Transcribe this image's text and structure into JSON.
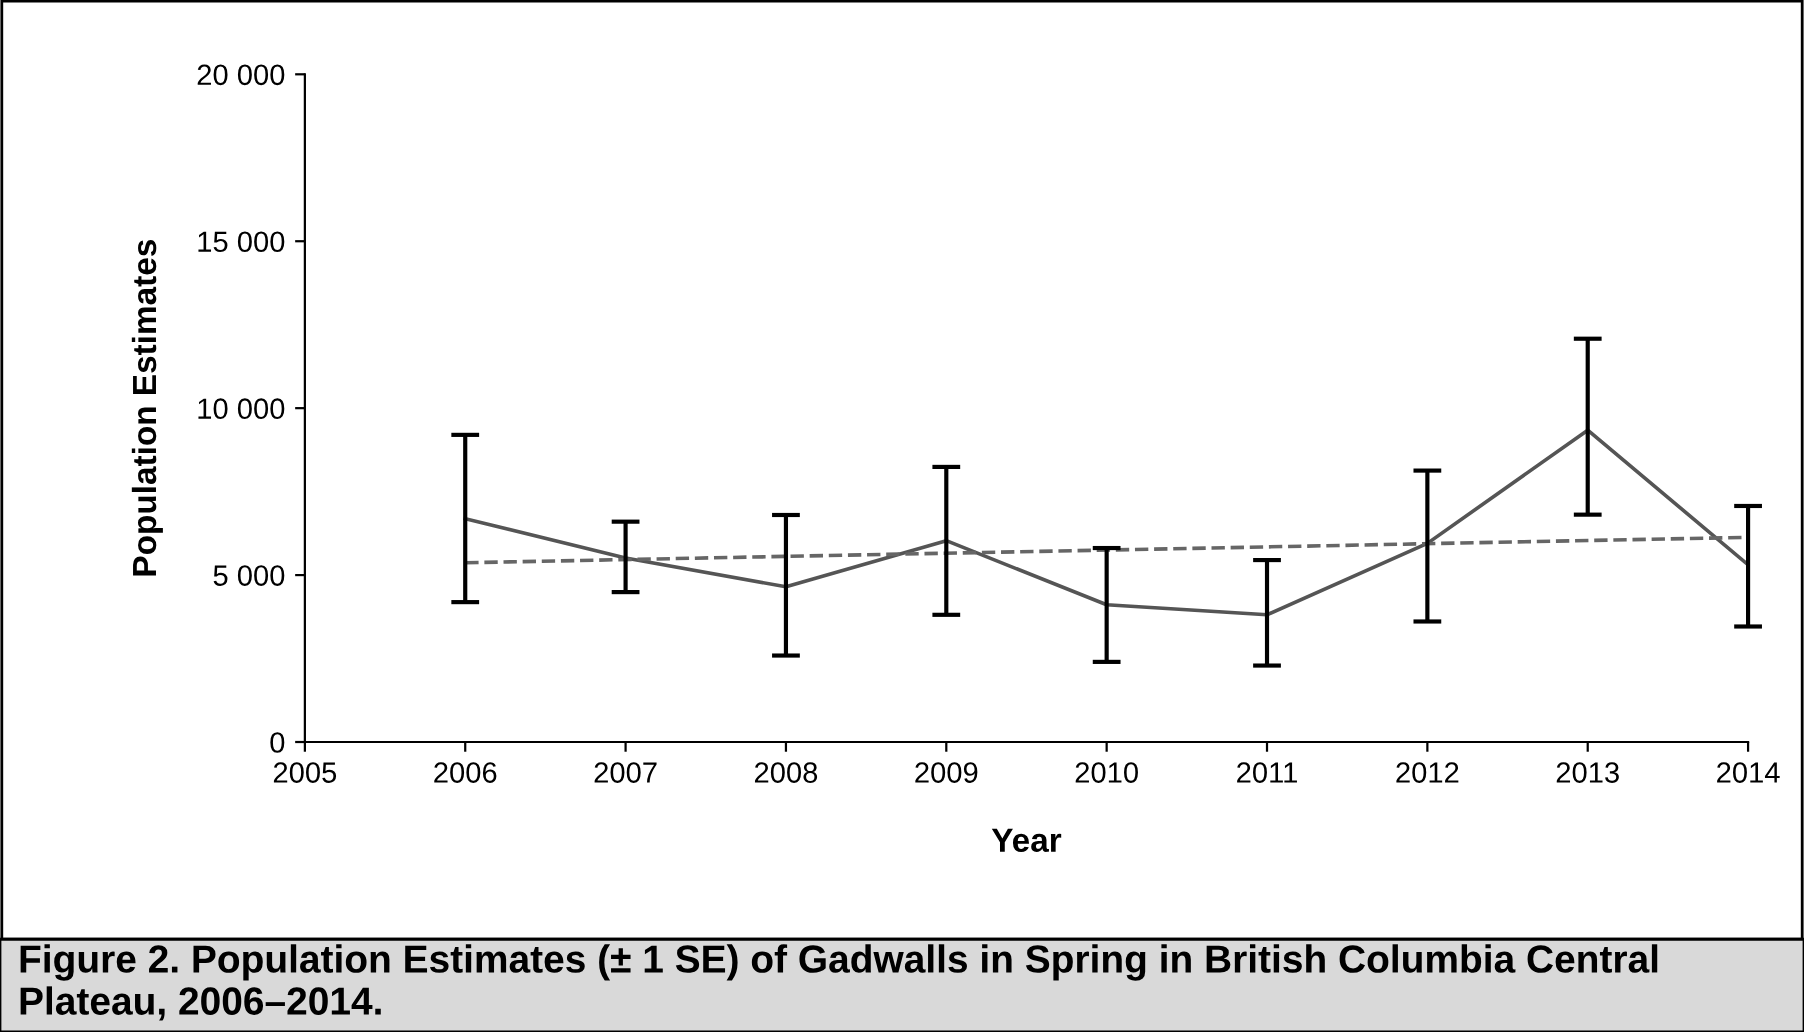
{
  "chart_data": {
    "type": "line",
    "xlabel": "Year",
    "ylabel": "Population Estimates",
    "x": [
      2006,
      2007,
      2008,
      2009,
      2010,
      2011,
      2012,
      2013,
      2014
    ],
    "series": [
      {
        "color": "#555555",
        "line_style": "solid",
        "values": [
          6690,
          5510,
          4650,
          6030,
          4110,
          3810,
          5950,
          9340,
          5310
        ],
        "errors": [
          [
            4190,
            9200
          ],
          [
            4490,
            6600
          ],
          [
            2590,
            6800
          ],
          [
            3810,
            8240
          ],
          [
            2400,
            5810
          ],
          [
            2290,
            5450
          ],
          [
            3610,
            8130
          ],
          [
            6810,
            12080
          ],
          [
            3460,
            7070
          ]
        ]
      },
      {
        "color": "#666666",
        "line_style": "dashed",
        "x": [
          2006,
          2014
        ],
        "values": [
          5370,
          6130
        ]
      }
    ],
    "xlim": [
      2005,
      2014
    ],
    "xticks": [
      2005,
      2006,
      2007,
      2008,
      2009,
      2010,
      2011,
      2012,
      2013,
      2014
    ],
    "ylim": [
      0,
      20000
    ],
    "yticks": [
      {
        "value": 0,
        "label": "0"
      },
      {
        "value": 5000,
        "label": "5 000"
      },
      {
        "value": 10000,
        "label": "10 000"
      },
      {
        "value": 15000,
        "label": "15 000"
      },
      {
        "value": 20000,
        "label": "20 000"
      }
    ],
    "grid": false,
    "legend": false,
    "marker": "none",
    "annotations": [
      "Figure 2. Population Estimates (± 1 SE) of Gadwalls in Spring in British Columbia Central Plateau, 2006–2014."
    ]
  }
}
